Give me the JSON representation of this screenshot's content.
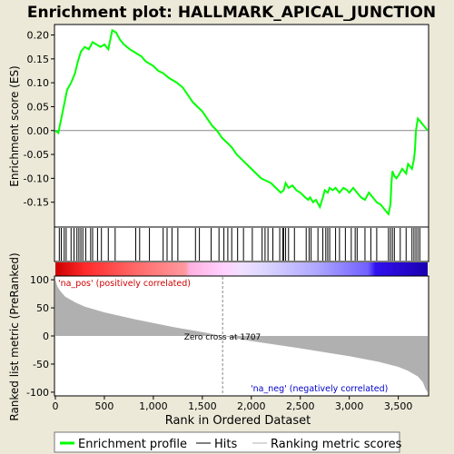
{
  "colors": {
    "background": "#ece9d8",
    "es_line": "#00ff00",
    "hits": "#000000",
    "metric_fill": "#b0b0b0",
    "zero_cross_line": "#888888",
    "pos_label": "#cc0000",
    "neg_label": "#0000cc"
  },
  "chart_data": {
    "type": "line",
    "title": "Enrichment plot: HALLMARK_APICAL_JUNCTION",
    "top_panel": {
      "ylabel": "Enrichment score (ES)",
      "ylim": [
        -0.2,
        0.22
      ],
      "yticks": [
        "0.20",
        "0.15",
        "0.10",
        "0.05",
        "0.00",
        "-0.05",
        "-0.10",
        "-0.15"
      ],
      "ytick_values": [
        0.2,
        0.15,
        0.1,
        0.05,
        0.0,
        -0.05,
        -0.1,
        -0.15
      ],
      "series": [
        {
          "x": [
            0,
            30,
            60,
            90,
            120,
            160,
            200,
            230,
            260,
            300,
            340,
            380,
            420,
            460,
            500,
            540,
            580,
            620,
            660,
            700,
            760,
            800,
            840,
            880,
            920,
            960,
            1000,
            1050,
            1100,
            1130,
            1160,
            1200,
            1240,
            1300,
            1350,
            1400,
            1450,
            1500,
            1550,
            1600,
            1650,
            1700,
            1750,
            1800,
            1850,
            1900,
            1950,
            2000,
            2050,
            2100,
            2150,
            2200,
            2250,
            2300,
            2330,
            2350,
            2380,
            2420,
            2460,
            2500,
            2550,
            2580,
            2600,
            2630,
            2660,
            2700,
            2730,
            2750,
            2780,
            2800,
            2830,
            2860,
            2900,
            2940,
            2980,
            3000,
            3040,
            3080,
            3120,
            3160,
            3200,
            3240,
            3280,
            3320,
            3360,
            3400,
            3420,
            3430,
            3440,
            3450,
            3460,
            3480,
            3500,
            3540,
            3580,
            3600,
            3640,
            3660,
            3670,
            3680,
            3700,
            3720,
            3760,
            3800
          ],
          "y": [
            0.0,
            -0.005,
            0.025,
            0.055,
            0.085,
            0.1,
            0.12,
            0.145,
            0.165,
            0.175,
            0.17,
            0.185,
            0.18,
            0.175,
            0.18,
            0.17,
            0.21,
            0.205,
            0.19,
            0.18,
            0.17,
            0.165,
            0.16,
            0.155,
            0.145,
            0.14,
            0.135,
            0.125,
            0.12,
            0.115,
            0.11,
            0.105,
            0.1,
            0.09,
            0.075,
            0.06,
            0.05,
            0.04,
            0.025,
            0.01,
            0.0,
            -0.015,
            -0.025,
            -0.035,
            -0.05,
            -0.06,
            -0.07,
            -0.08,
            -0.09,
            -0.1,
            -0.105,
            -0.11,
            -0.12,
            -0.13,
            -0.125,
            -0.11,
            -0.12,
            -0.115,
            -0.125,
            -0.13,
            -0.14,
            -0.145,
            -0.14,
            -0.15,
            -0.145,
            -0.16,
            -0.14,
            -0.125,
            -0.13,
            -0.12,
            -0.125,
            -0.12,
            -0.13,
            -0.12,
            -0.125,
            -0.13,
            -0.12,
            -0.13,
            -0.14,
            -0.145,
            -0.13,
            -0.14,
            -0.15,
            -0.155,
            -0.165,
            -0.175,
            -0.155,
            -0.11,
            -0.085,
            -0.09,
            -0.095,
            -0.1,
            -0.095,
            -0.08,
            -0.09,
            -0.07,
            -0.08,
            -0.06,
            -0.04,
            0.0,
            0.025,
            0.02,
            0.01,
            0.0
          ]
        }
      ]
    },
    "hits_panel": {
      "hit_positions": [
        40,
        60,
        90,
        110,
        160,
        190,
        220,
        240,
        260,
        280,
        310,
        360,
        380,
        430,
        470,
        540,
        610,
        820,
        860,
        960,
        1100,
        1140,
        1190,
        1250,
        1430,
        1470,
        1590,
        1670,
        1720,
        1760,
        1800,
        1860,
        1920,
        2010,
        2110,
        2140,
        2170,
        2220,
        2290,
        2320,
        2330,
        2350,
        2380,
        2440,
        2560,
        2590,
        2610,
        2680,
        2730,
        2760,
        2780,
        2800,
        2860,
        2900,
        2960,
        3020,
        3060,
        3080,
        3160,
        3220,
        3280,
        3400,
        3420,
        3440,
        3460,
        3520,
        3580,
        3640,
        3660,
        3680,
        3700,
        3720
      ]
    },
    "metric_panel": {
      "ylabel": "Ranked list metric (PreRanked)",
      "xlabel": "Rank in Ordered Dataset",
      "ylim": [
        -105,
        105
      ],
      "yticks": [
        "100",
        "50",
        "0",
        "-50",
        "-100"
      ],
      "ytick_values": [
        100,
        50,
        0,
        -50,
        -100
      ],
      "xlim": [
        0,
        3800
      ],
      "xticks": [
        "0",
        "500",
        "1,000",
        "1,500",
        "2,000",
        "2,500",
        "3,000",
        "3,500"
      ],
      "xtick_values": [
        0,
        500,
        1000,
        1500,
        2000,
        2500,
        3000,
        3500
      ],
      "zero_cross_rank": 1707,
      "zero_cross_label": "Zero cross at 1707",
      "pos_label": "'na_pos' (positively correlated)",
      "neg_label": "'na_neg' (negatively correlated)",
      "metric_curve": {
        "x": [
          0,
          20,
          50,
          100,
          200,
          300,
          500,
          800,
          1200,
          1500,
          1707,
          2000,
          2500,
          3000,
          3300,
          3500,
          3600,
          3700,
          3750,
          3780,
          3800
        ],
        "y": [
          100,
          88,
          80,
          70,
          60,
          52,
          42,
          30,
          16,
          7,
          0,
          -9,
          -22,
          -36,
          -46,
          -55,
          -62,
          -72,
          -82,
          -95,
          -100
        ]
      }
    },
    "legend": {
      "placement": "bottom",
      "items": [
        "Enrichment profile",
        "Hits",
        "Ranking metric scores"
      ]
    }
  }
}
